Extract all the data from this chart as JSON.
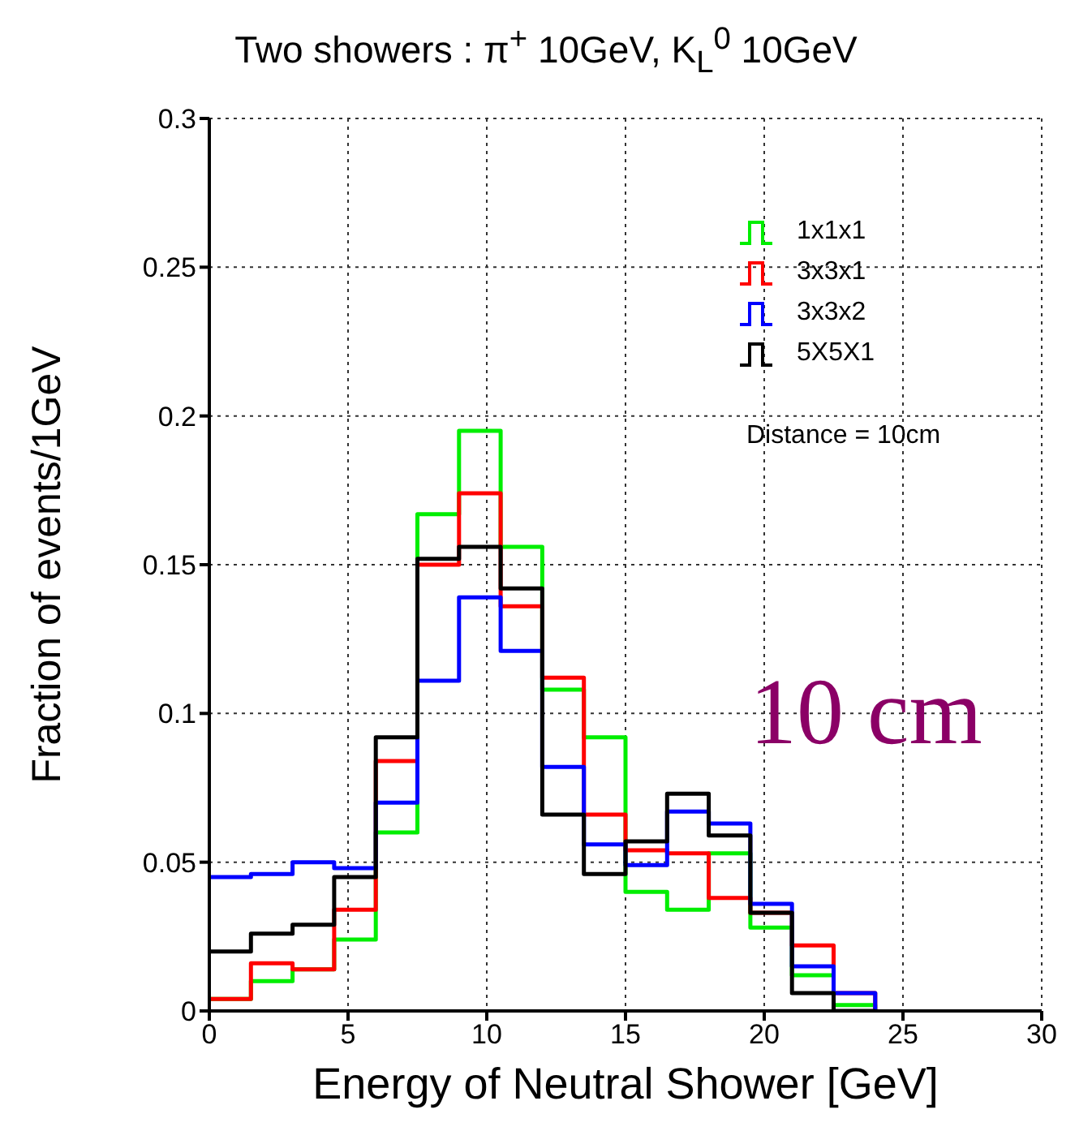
{
  "chart_data": {
    "type": "histogram",
    "title": "Two showers : π$^{+}$ 10GeV, K$_{L}$$^{0}$ 10GeV",
    "xlabel": "Energy of Neutral Shower [GeV]",
    "ylabel": "Fraction of events/1GeV",
    "bins": [
      0,
      1.5,
      3,
      4.5,
      6,
      7.5,
      9,
      10.5,
      12,
      13.5,
      15,
      16.5,
      18,
      19.5,
      21,
      22.5,
      24
    ],
    "series": [
      {
        "name": "1x1x1",
        "color": "#00ee00",
        "values": [
          0.004,
          0.01,
          0.014,
          0.024,
          0.06,
          0.167,
          0.195,
          0.156,
          0.108,
          0.092,
          0.04,
          0.034,
          0.053,
          0.028,
          0.012,
          0.002
        ]
      },
      {
        "name": "3x3x1",
        "color": "#ff0000",
        "values": [
          0.004,
          0.016,
          0.014,
          0.034,
          0.084,
          0.15,
          0.174,
          0.136,
          0.112,
          0.066,
          0.054,
          0.053,
          0.038,
          0.033,
          0.022,
          0.006
        ]
      },
      {
        "name": "3x3x2",
        "color": "#0000ff",
        "values": [
          0.045,
          0.046,
          0.05,
          0.048,
          0.07,
          0.111,
          0.139,
          0.121,
          0.082,
          0.056,
          0.049,
          0.067,
          0.063,
          0.036,
          0.015,
          0.006
        ]
      },
      {
        "name": "5X5X1",
        "color": "#000000",
        "values": [
          0.02,
          0.026,
          0.029,
          0.045,
          0.092,
          0.152,
          0.156,
          0.142,
          0.066,
          0.046,
          0.057,
          0.073,
          0.059,
          0.033,
          0.006,
          0
        ]
      }
    ],
    "xlim": [
      0,
      30
    ],
    "xticks": [
      0,
      5,
      10,
      15,
      20,
      25,
      30
    ],
    "ylim": [
      0,
      0.3
    ],
    "yticks": [
      0,
      0.05,
      0.1,
      0.15,
      0.2,
      0.25,
      0.3
    ],
    "grid": true,
    "legend": "top right",
    "line_style": "solid",
    "annotations": [
      "Distance = 10cm",
      "10 cm"
    ]
  }
}
